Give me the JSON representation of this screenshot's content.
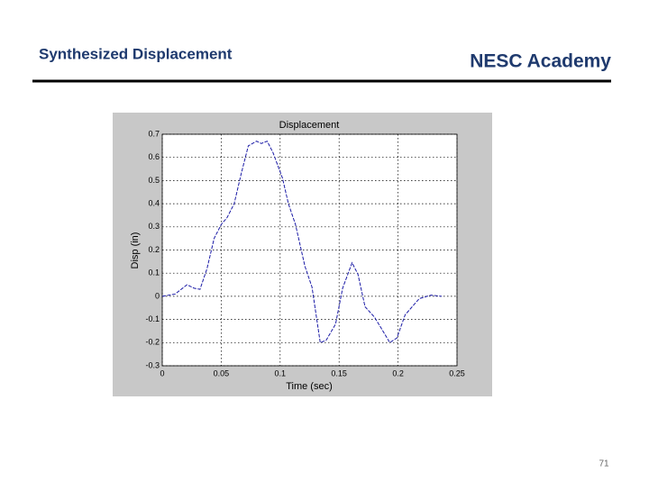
{
  "slide": {
    "title": "Synthesized Displacement",
    "organization": "NESC Academy",
    "page_number": 71
  },
  "chart_data": {
    "type": "line",
    "title": "Displacement",
    "x_label": "Time (sec)",
    "y_label": "Disp (in)",
    "x": [
      0,
      0.011,
      0.021,
      0.027,
      0.032,
      0.038,
      0.044,
      0.05,
      0.055,
      0.061,
      0.067,
      0.073,
      0.08,
      0.084,
      0.089,
      0.094,
      0.102,
      0.107,
      0.113,
      0.121,
      0.127,
      0.134,
      0.139,
      0.147,
      0.153,
      0.161,
      0.166,
      0.172,
      0.18,
      0.186,
      0.193,
      0.199,
      0.206,
      0.218,
      0.228,
      0.237
    ],
    "values": [
      0,
      0.01,
      0.05,
      0.035,
      0.03,
      0.12,
      0.25,
      0.31,
      0.34,
      0.4,
      0.53,
      0.65,
      0.67,
      0.66,
      0.67,
      0.62,
      0.51,
      0.4,
      0.31,
      0.13,
      0.04,
      -0.2,
      -0.19,
      -0.12,
      0.035,
      0.145,
      0.095,
      -0.045,
      -0.09,
      -0.14,
      -0.2,
      -0.18,
      -0.08,
      -0.01,
      0.005,
      0
    ],
    "color": "#1a1aa6",
    "xlim": [
      0,
      0.25
    ],
    "xticks": [
      0,
      0.05,
      0.1,
      0.15,
      0.2,
      0.25
    ],
    "ylim": [
      -0.3,
      0.7
    ],
    "yticks": [
      -0.3,
      -0.2,
      -0.1,
      0,
      0.1,
      0.2,
      0.3,
      0.4,
      0.5,
      0.6,
      0.7
    ],
    "grid": true
  }
}
